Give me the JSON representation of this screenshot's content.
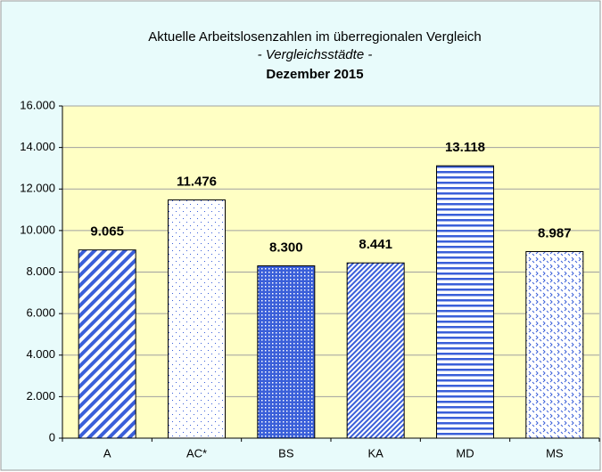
{
  "chart_data": {
    "type": "bar",
    "title": "Aktuelle Arbeitslosenzahlen im überregionalen Vergleich",
    "subtitle": "- Vergleichsstädte -",
    "subtitle2": "Dezember 2015",
    "categories": [
      "A",
      "AC*",
      "BS",
      "KA",
      "MD",
      "MS"
    ],
    "values": [
      9065,
      11476,
      8300,
      8441,
      13118,
      8987
    ],
    "value_labels": [
      "9.065",
      "11.476",
      "8.300",
      "8.441",
      "13.118",
      "8.987"
    ],
    "color": "#3a5fd9",
    "ylim": [
      0,
      16000
    ],
    "yticks": [
      0,
      {
        "value": 2000,
        "label": "2.000"
      },
      {
        "value": 4000,
        "label": "4.000"
      },
      {
        "value": 6000,
        "label": "6.000"
      },
      {
        "value": 8000,
        "label": "8.000"
      },
      {
        "value": 10000,
        "label": "10.000"
      },
      {
        "value": 12000,
        "label": "12.000"
      },
      {
        "value": 14000,
        "label": "14.000"
      },
      {
        "value": 16000,
        "label": "16.000"
      }
    ],
    "grid": true
  }
}
